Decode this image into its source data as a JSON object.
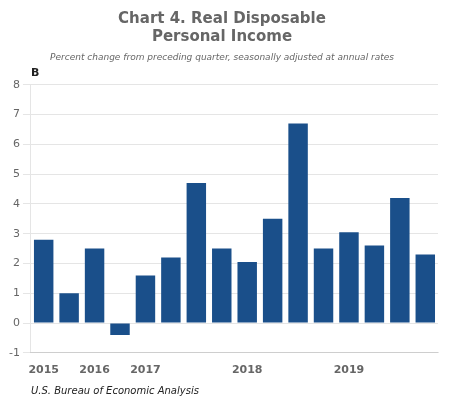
{
  "chart_data": {
    "type": "bar",
    "title": [
      "Chart 4. Real Disposable",
      "Personal Income"
    ],
    "subtitle": "Percent change from preceding quarter, seasonally adjusted at annual rates",
    "ylabel": "B",
    "annotations": [
      "U.S. Bureau of Economic Analysis"
    ],
    "categories": [
      "2015",
      null,
      "2016",
      null,
      "2017",
      null,
      null,
      null,
      "2018",
      null,
      null,
      null,
      "2019",
      null,
      null,
      null
    ],
    "values": [
      2.8,
      1.0,
      2.5,
      -0.4,
      1.6,
      2.2,
      4.7,
      2.5,
      2.05,
      3.5,
      6.7,
      2.5,
      3.05,
      2.6,
      4.2,
      2.3
    ],
    "color": "#1A4F8A",
    "ylim": [
      -1,
      8
    ],
    "yticks": [
      -1,
      0,
      1,
      2,
      3,
      4,
      5,
      6,
      7,
      8
    ],
    "grid": true
  }
}
